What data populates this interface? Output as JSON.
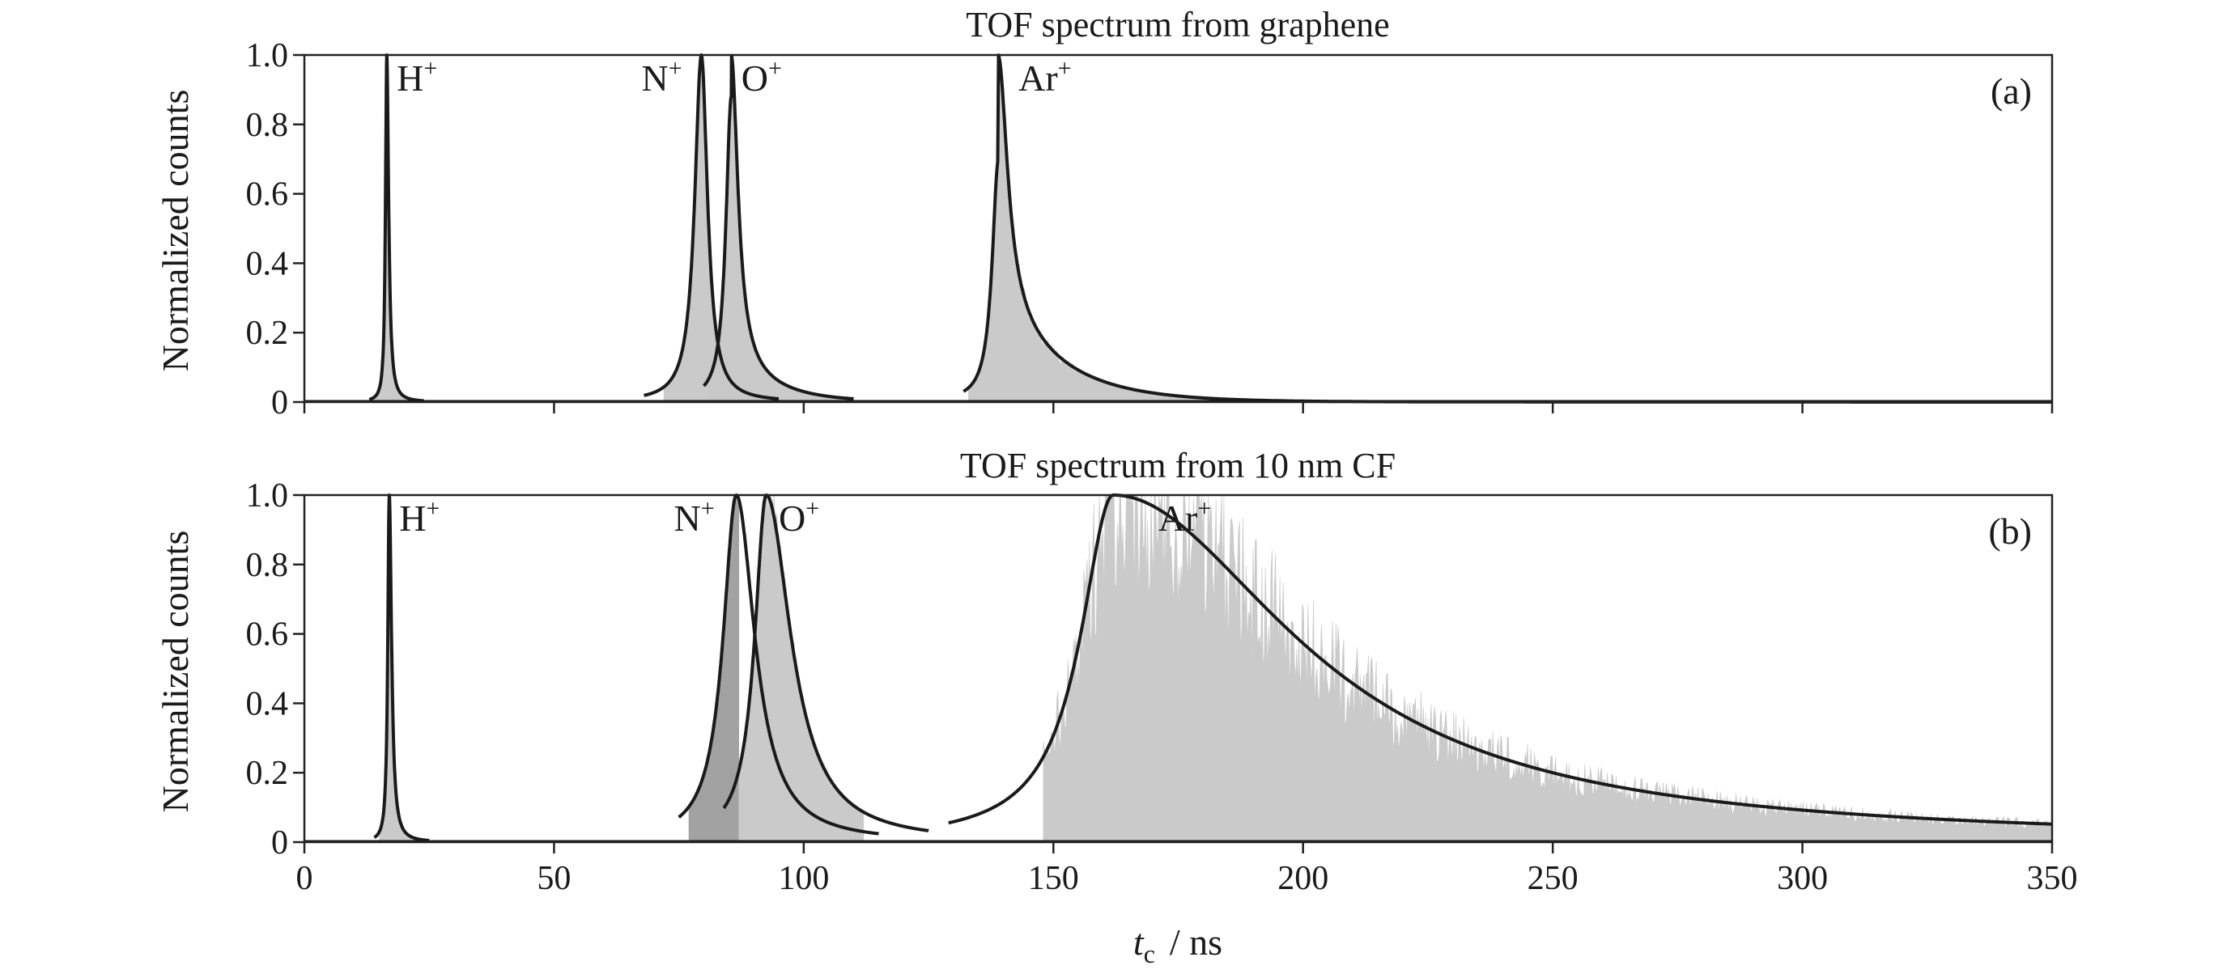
{
  "chart_data": [
    {
      "type": "area",
      "title": "TOF spectrum from graphene",
      "panel_tag": "(a)",
      "ylabel": "Normalized counts",
      "xlabel": "",
      "xlim": [
        0,
        350
      ],
      "ylim": [
        0,
        1.0
      ],
      "x_ticks": [
        0,
        50,
        100,
        150,
        200,
        250,
        300,
        350
      ],
      "y_tick_labels": [
        "0",
        "0.2",
        "0.4",
        "0.6",
        "0.8",
        "1.0"
      ],
      "y_ticks": [
        0,
        0.2,
        0.4,
        0.6,
        0.8,
        1.0
      ],
      "show_x_tick_labels": false,
      "grid": false,
      "series": [
        {
          "name": "H+",
          "peak_x": 16.5,
          "peak_y": 1.0,
          "rise_width": 0.3,
          "tail_width": 0.45,
          "tail_fraction": 0.0,
          "tail_decay": 3,
          "histogram_x": [
            14,
            22
          ],
          "fit_x": [
            13,
            24
          ],
          "noise": 0
        },
        {
          "name": "N+",
          "peak_x": 79.5,
          "peak_y": 1.0,
          "rise_width": 1.6,
          "tail_width": 1.5,
          "tail_fraction": 0.0,
          "tail_decay": 6,
          "histogram_x": [
            72,
            90
          ],
          "fit_x": [
            68,
            95
          ],
          "noise": 0.02
        },
        {
          "name": "O+",
          "peak_x": 85.5,
          "peak_y": 1.0,
          "rise_width": 1.3,
          "tail_width": 1.6,
          "tail_fraction": 0.12,
          "tail_decay": 8,
          "histogram_x": [
            81,
            108
          ],
          "fit_x": [
            80,
            110
          ],
          "noise": 0.02
        },
        {
          "name": "Ar+",
          "peak_x": 139,
          "peak_y": 1.0,
          "rise_width": 1.5,
          "tail_width": 2.2,
          "tail_fraction": 0.3,
          "tail_decay": 12,
          "histogram_x": [
            133,
            350
          ],
          "fit_x": [
            132,
            350
          ],
          "noise": 0.05
        }
      ],
      "peak_labels": [
        {
          "text": "H",
          "sup": "+",
          "x": 18.5,
          "y": 0.93
        },
        {
          "text": "N",
          "sup": "+",
          "x": 67.5,
          "y": 0.93
        },
        {
          "text": "O",
          "sup": "+",
          "x": 87.5,
          "y": 0.93
        },
        {
          "text": "Ar",
          "sup": "+",
          "x": 143,
          "y": 0.93
        }
      ]
    },
    {
      "type": "area",
      "title": "TOF spectrum from 10 nm CF",
      "panel_tag": "(b)",
      "ylabel": "Normalized counts",
      "xlabel_symbol": "t",
      "xlabel_subscript": "c",
      "xlabel_unit": "/ ns",
      "xlim": [
        0,
        350
      ],
      "ylim": [
        0,
        1.0
      ],
      "x_ticks": [
        0,
        50,
        100,
        150,
        200,
        250,
        300,
        350
      ],
      "x_tick_labels": [
        "0",
        "50",
        "100",
        "150",
        "200",
        "250",
        "300",
        "350"
      ],
      "y_tick_labels": [
        "0",
        "0.2",
        "0.4",
        "0.6",
        "0.8",
        "1.0"
      ],
      "y_ticks": [
        0,
        0.2,
        0.4,
        0.6,
        0.8,
        1.0
      ],
      "show_x_tick_labels": true,
      "grid": false,
      "series": [
        {
          "name": "H+",
          "peak_x": 17.0,
          "peak_y": 1.0,
          "rise_width": 0.35,
          "tail_width": 0.55,
          "tail_fraction": 0.0,
          "tail_decay": 3,
          "histogram_x": [
            15,
            23
          ],
          "fit_x": [
            14,
            25
          ],
          "noise": 0
        },
        {
          "name": "N+",
          "peak_x": 86.5,
          "peak_y": 1.0,
          "rise_width": 3.2,
          "tail_width": 4.5,
          "tail_fraction": 0.0,
          "tail_decay": 8,
          "histogram_x": [
            77,
            87
          ],
          "fit_x": [
            75,
            115
          ],
          "noise": 0.02
        },
        {
          "name": "O+",
          "peak_x": 92.5,
          "peak_y": 1.0,
          "rise_width": 2.8,
          "tail_width": 6.0,
          "tail_fraction": 0.0,
          "tail_decay": 10,
          "histogram_x": [
            87,
            112
          ],
          "fit_x": [
            84,
            125
          ],
          "noise": 0.03
        },
        {
          "name": "Ar+",
          "peak_x": 162,
          "peak_y": 1.0,
          "rise_width": 8.0,
          "tail_width": 44.0,
          "tail_fraction": 0.0,
          "tail_decay": 44,
          "histogram_x": [
            148,
            350
          ],
          "fit_x": [
            129,
            350
          ],
          "noise": 0.12
        }
      ],
      "peak_labels": [
        {
          "text": "H",
          "sup": "+",
          "x": 19,
          "y": 0.93
        },
        {
          "text": "N",
          "sup": "+",
          "x": 74,
          "y": 0.93
        },
        {
          "text": "O",
          "sup": "+",
          "x": 95,
          "y": 0.93
        },
        {
          "text": "Ar",
          "sup": "+",
          "x": 171,
          "y": 0.93
        }
      ]
    }
  ],
  "colors": {
    "fill": "#c8c8c8",
    "fill_overlap": "#9e9e9e",
    "fit_line": "#1a1a1a",
    "axis": "#222222"
  }
}
